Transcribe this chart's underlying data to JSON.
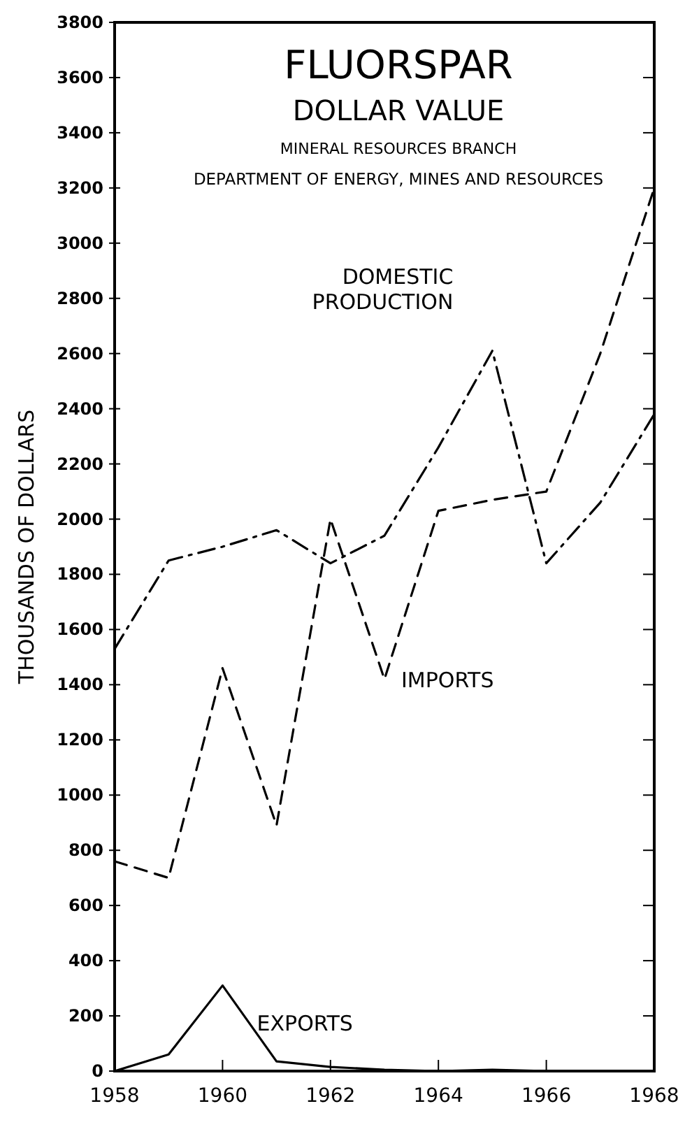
{
  "chart_data": {
    "type": "line",
    "title": "FLUORSPAR",
    "subtitle": "DOLLAR VALUE",
    "annotations": [
      "MINERAL RESOURCES BRANCH",
      "DEPARTMENT OF ENERGY, MINES AND RESOURCES"
    ],
    "ylabel": "THOUSANDS OF DOLLARS",
    "x": [
      1958,
      1959,
      1960,
      1961,
      1962,
      1963,
      1964,
      1965,
      1966,
      1967,
      1968
    ],
    "series": [
      {
        "name": "DOMESTIC PRODUCTION",
        "color": "#000000",
        "line_style": "dashdot",
        "values": [
          1530,
          1850,
          1900,
          1960,
          1840,
          1940,
          2260,
          2610,
          1840,
          2060,
          2380
        ]
      },
      {
        "name": "IMPORTS",
        "color": "#000000",
        "line_style": "dashed",
        "values": [
          760,
          700,
          1460,
          890,
          2000,
          1420,
          2030,
          2070,
          2100,
          2600,
          3200
        ]
      },
      {
        "name": "EXPORTS",
        "color": "#000000",
        "line_style": "solid",
        "values": [
          0,
          60,
          310,
          35,
          15,
          5,
          0,
          5,
          0,
          0,
          0
        ]
      }
    ],
    "xlim": [
      1958,
      1968
    ],
    "xticks": [
      1958,
      1960,
      1962,
      1964,
      1966,
      1968
    ],
    "ylim": [
      0,
      3800
    ],
    "yticks": [
      0,
      200,
      400,
      600,
      800,
      1000,
      1200,
      1400,
      1600,
      1800,
      2000,
      2200,
      2400,
      2600,
      2800,
      3000,
      3200,
      3400,
      3600,
      3800
    ],
    "grid": false,
    "legend": false,
    "marker": "none"
  }
}
